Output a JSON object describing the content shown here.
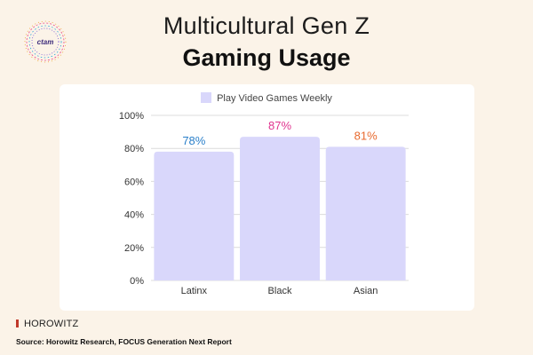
{
  "logo": {
    "text": "ctam"
  },
  "header": {
    "title": "Multicultural Gen Z",
    "subtitle": "Gaming Usage"
  },
  "brand": {
    "name": "HOROWITZ"
  },
  "footer": {
    "source": "Source: Horowitz Research, FOCUS Generation Next Report"
  },
  "chart_data": {
    "type": "bar",
    "categories": [
      "Latinx",
      "Black",
      "Asian"
    ],
    "series": [
      {
        "name": "Play Video Games Weekly",
        "values": [
          78,
          87,
          81
        ],
        "color": "#d9d7fb"
      }
    ],
    "data_labels": [
      "78%",
      "87%",
      "81%"
    ],
    "data_label_colors": [
      "#2a7fc9",
      "#e0358f",
      "#e86a2e"
    ],
    "y_ticks": [
      "0%",
      "20%",
      "40%",
      "60%",
      "80%",
      "100%"
    ],
    "ylim": [
      0,
      100
    ],
    "grid": true,
    "legend_position": "top-center"
  }
}
